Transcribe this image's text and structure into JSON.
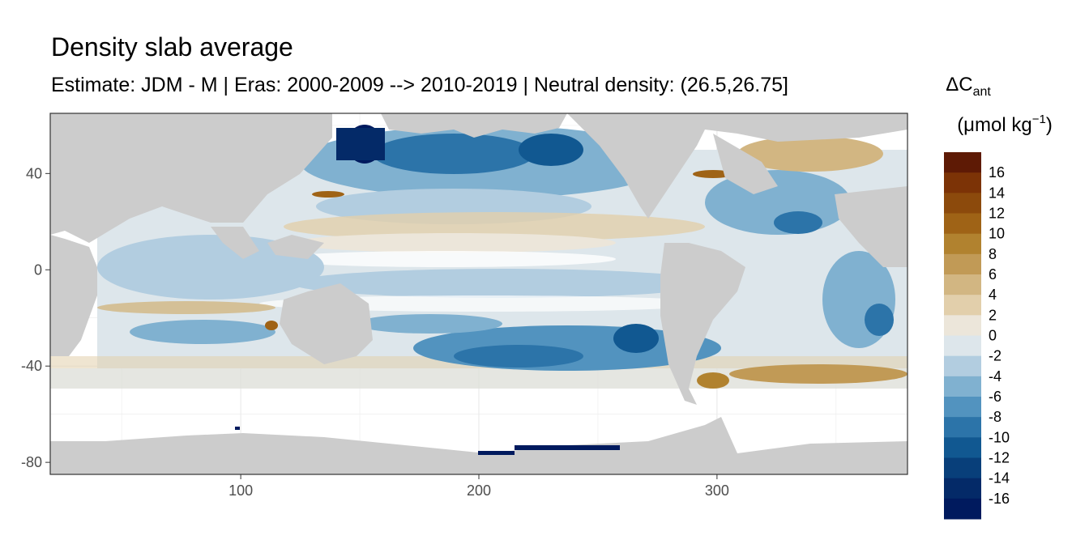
{
  "chart_data": {
    "type": "heatmap",
    "title": "Density slab average",
    "subtitle": "Estimate: JDM - M | Eras: 2000-2009 --> 2010-2019 | Neutral density: (26.5,26.75]",
    "xlabel": "",
    "ylabel": "",
    "xlim": [
      20,
      380
    ],
    "ylim": [
      -85,
      65
    ],
    "x_ticks": [
      100,
      200,
      300
    ],
    "y_ticks": [
      40,
      0,
      -40,
      -80
    ],
    "grid": true,
    "land_color": "#cccccc",
    "legend": {
      "title_main": "ΔC",
      "title_sub": "ant",
      "title_unit_open": "(μmol kg",
      "title_unit_exp": "−1",
      "title_unit_close": ")",
      "position": "right",
      "breaks": [
        16,
        14,
        12,
        10,
        8,
        6,
        4,
        2,
        0,
        -2,
        -4,
        -6,
        -8,
        -10,
        -12,
        -14,
        -16
      ],
      "colors": [
        "#5e1a05",
        "#7c3306",
        "#8c4a0c",
        "#9f6316",
        "#b1822f",
        "#c19a56",
        "#d2b682",
        "#e2cfab",
        "#ece6da",
        "#dde6eb",
        "#b2cde0",
        "#80b1d0",
        "#5293bf",
        "#2c74a9",
        "#115891",
        "#083f7a",
        "#042a68",
        "#001a5e"
      ]
    },
    "features": {
      "pacific_hotspot": {
        "lon": [
          160,
          175
        ],
        "lat": [
          45,
          60
        ],
        "value": -16
      },
      "antarctic_strip": {
        "lon": [
          195,
          270
        ],
        "lat": [
          -78,
          -75
        ],
        "value": -16
      },
      "north_atlantic_pos": {
        "lon": [
          310,
          360
        ],
        "lat": [
          30,
          55
        ],
        "value": 8
      },
      "south_atlantic_pos": {
        "lon": [
          280,
          380
        ],
        "lat": [
          -50,
          -35
        ],
        "value": 6
      }
    }
  }
}
